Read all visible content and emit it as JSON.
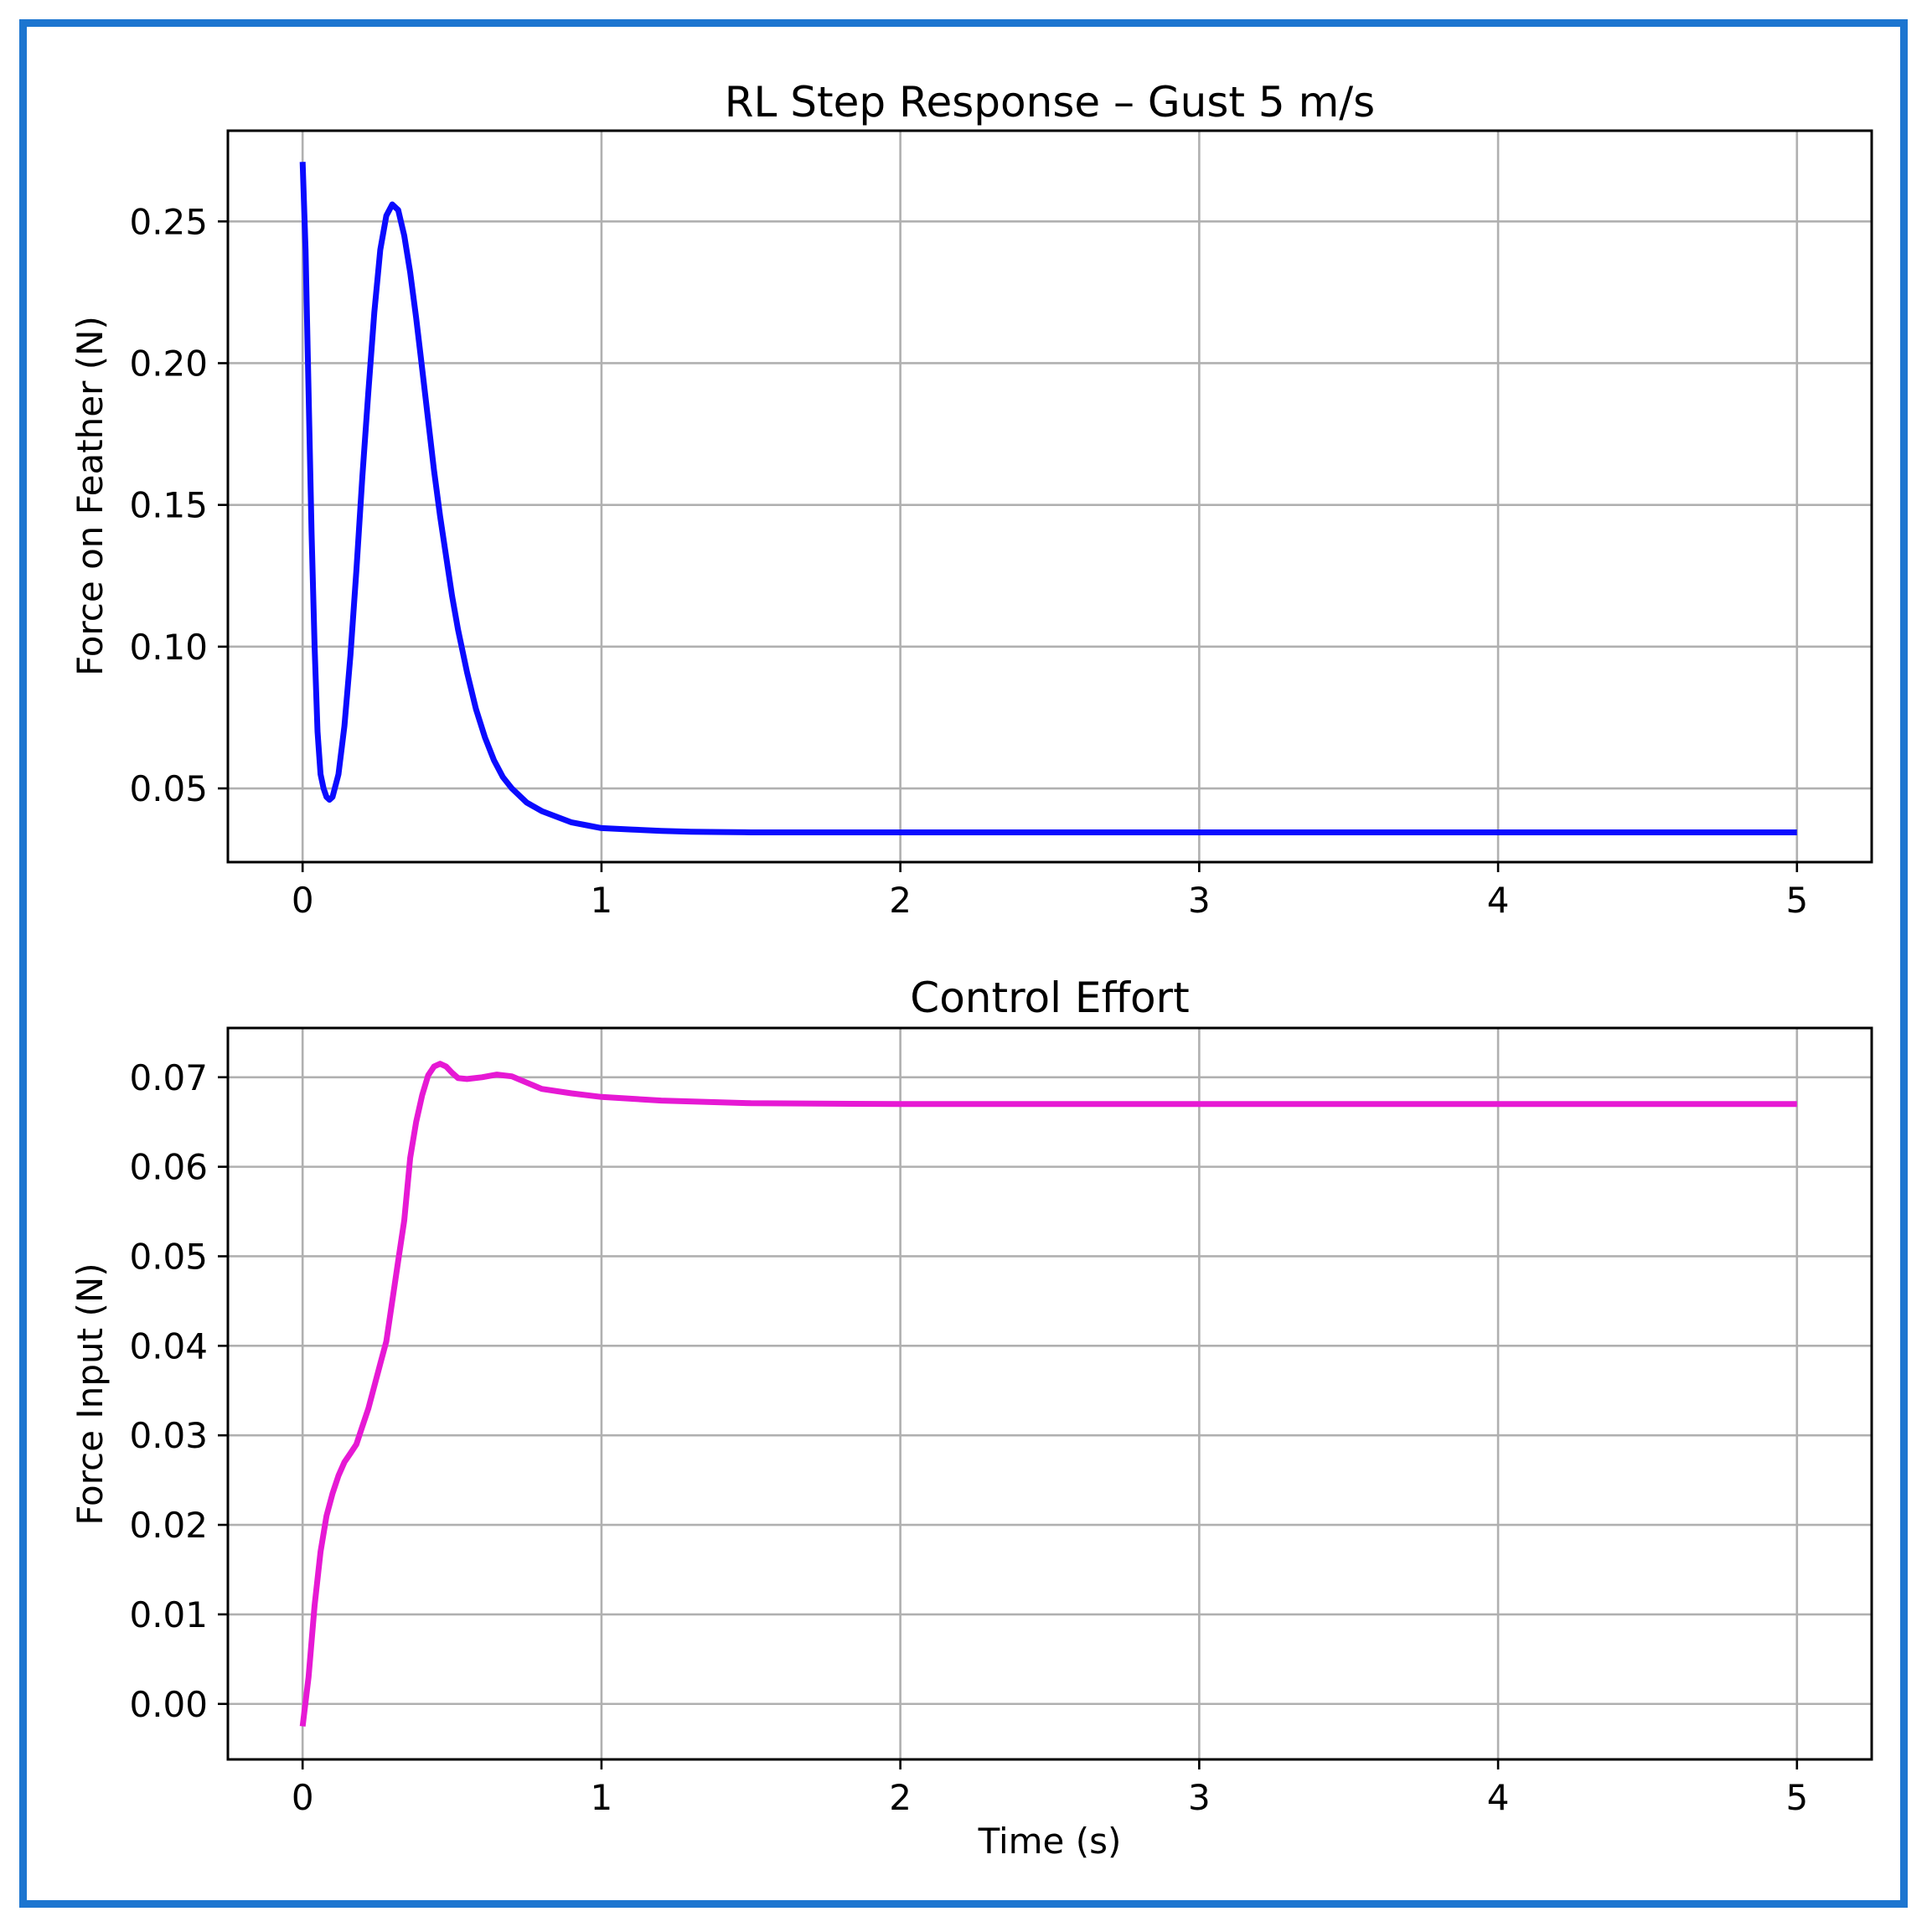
{
  "figure": {
    "border_color": "#1c75d0"
  },
  "chart_data": [
    {
      "type": "line",
      "title": "RL Step Response – Gust 5 m/s",
      "xlabel": "",
      "ylabel": "Force on Feather (N)",
      "xlim": [
        -0.25,
        5.25
      ],
      "ylim": [
        0.024,
        0.282
      ],
      "xticks": [
        0,
        1,
        2,
        3,
        4,
        5
      ],
      "xtick_labels": [
        "0",
        "1",
        "2",
        "3",
        "4",
        "5"
      ],
      "yticks": [
        0.05,
        0.1,
        0.15,
        0.2,
        0.25
      ],
      "ytick_labels": [
        "0.05",
        "0.10",
        "0.15",
        "0.20",
        "0.25"
      ],
      "grid": true,
      "series": [
        {
          "color": "#0b0bff",
          "x": [
            0,
            0.01,
            0.02,
            0.03,
            0.04,
            0.05,
            0.06,
            0.07,
            0.08,
            0.09,
            0.1,
            0.12,
            0.14,
            0.16,
            0.18,
            0.2,
            0.22,
            0.24,
            0.26,
            0.28,
            0.3,
            0.32,
            0.34,
            0.36,
            0.38,
            0.4,
            0.42,
            0.44,
            0.46,
            0.48,
            0.5,
            0.52,
            0.55,
            0.58,
            0.61,
            0.64,
            0.67,
            0.7,
            0.75,
            0.8,
            0.85,
            0.9,
            0.95,
            1.0,
            1.1,
            1.2,
            1.3,
            1.4,
            1.5,
            1.6,
            1.8,
            2.0,
            2.5,
            3.0,
            3.5,
            4.0,
            4.5,
            5.0
          ],
          "y": [
            0.271,
            0.24,
            0.19,
            0.14,
            0.1,
            0.07,
            0.055,
            0.05,
            0.047,
            0.046,
            0.047,
            0.055,
            0.072,
            0.097,
            0.127,
            0.16,
            0.19,
            0.218,
            0.24,
            0.252,
            0.256,
            0.254,
            0.245,
            0.232,
            0.216,
            0.198,
            0.18,
            0.162,
            0.146,
            0.132,
            0.118,
            0.106,
            0.091,
            0.078,
            0.068,
            0.06,
            0.054,
            0.05,
            0.045,
            0.042,
            0.04,
            0.038,
            0.037,
            0.036,
            0.0355,
            0.035,
            0.0347,
            0.0346,
            0.0345,
            0.0345,
            0.0345,
            0.0345,
            0.0345,
            0.0345,
            0.0345,
            0.0345,
            0.0345,
            0.0345
          ]
        }
      ]
    },
    {
      "type": "line",
      "title": "Control Effort",
      "xlabel": "Time (s)",
      "ylabel": "Force Input (N)",
      "xlim": [
        -0.25,
        5.25
      ],
      "ylim": [
        -0.0062,
        0.0755
      ],
      "xticks": [
        0,
        1,
        2,
        3,
        4,
        5
      ],
      "xtick_labels": [
        "0",
        "1",
        "2",
        "3",
        "4",
        "5"
      ],
      "yticks": [
        0.0,
        0.01,
        0.02,
        0.03,
        0.04,
        0.05,
        0.06,
        0.07
      ],
      "ytick_labels": [
        "0.00",
        "0.01",
        "0.02",
        "0.03",
        "0.04",
        "0.05",
        "0.06",
        "0.07"
      ],
      "grid": true,
      "series": [
        {
          "color": "#e619d4",
          "x": [
            0,
            0.02,
            0.04,
            0.06,
            0.08,
            0.1,
            0.12,
            0.14,
            0.16,
            0.18,
            0.2,
            0.22,
            0.24,
            0.26,
            0.28,
            0.3,
            0.32,
            0.34,
            0.36,
            0.38,
            0.4,
            0.42,
            0.44,
            0.46,
            0.48,
            0.5,
            0.52,
            0.55,
            0.6,
            0.65,
            0.7,
            0.75,
            0.8,
            0.9,
            1.0,
            1.2,
            1.5,
            2.0,
            3.0,
            4.0,
            5.0
          ],
          "y": [
            -0.0025,
            0.003,
            0.011,
            0.017,
            0.021,
            0.0235,
            0.0255,
            0.027,
            0.028,
            0.029,
            0.031,
            0.033,
            0.0355,
            0.038,
            0.0405,
            0.045,
            0.0495,
            0.054,
            0.061,
            0.065,
            0.068,
            0.0702,
            0.0712,
            0.0715,
            0.0712,
            0.0705,
            0.0699,
            0.0698,
            0.07,
            0.0703,
            0.0701,
            0.0694,
            0.0687,
            0.0682,
            0.0678,
            0.0674,
            0.0671,
            0.067,
            0.067,
            0.067,
            0.067
          ]
        }
      ]
    }
  ]
}
